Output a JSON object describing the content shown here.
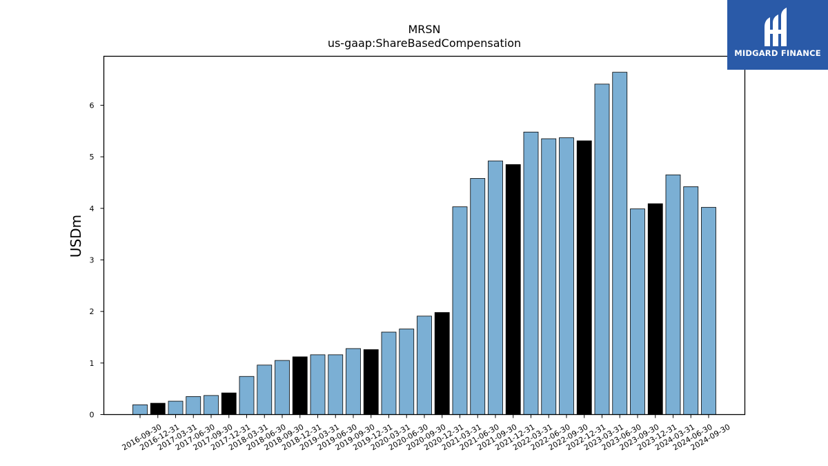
{
  "chart_data": {
    "type": "bar",
    "title": "MRSN",
    "subtitle": "us-gaap:ShareBasedCompensation",
    "xlabel": "",
    "ylabel": "USDm",
    "ylim": [
      0,
      6.95
    ],
    "yticks": [
      0,
      1,
      2,
      3,
      4,
      5,
      6
    ],
    "grid": false,
    "legend": "none",
    "colors": {
      "quarter": "#7bafd4",
      "year_end": "#000000",
      "edge": "#000000"
    },
    "categories": [
      "2016-09-30",
      "2016-12-31",
      "2017-03-31",
      "2017-06-30",
      "2017-09-30",
      "2017-12-31",
      "2018-03-31",
      "2018-06-30",
      "2018-09-30",
      "2018-12-31",
      "2019-03-31",
      "2019-06-30",
      "2019-09-30",
      "2019-12-31",
      "2020-03-31",
      "2020-06-30",
      "2020-09-30",
      "2020-12-31",
      "2021-03-31",
      "2021-06-30",
      "2021-09-30",
      "2021-12-31",
      "2022-03-31",
      "2022-06-30",
      "2022-09-30",
      "2022-12-31",
      "2023-03-31",
      "2023-06-30",
      "2023-09-30",
      "2023-12-31",
      "2024-03-31",
      "2024-06-30",
      "2024-09-30"
    ],
    "values": [
      0.19,
      0.22,
      0.26,
      0.35,
      0.37,
      0.42,
      0.74,
      0.96,
      1.05,
      1.12,
      1.16,
      1.16,
      1.28,
      1.26,
      1.6,
      1.66,
      1.91,
      1.98,
      4.03,
      4.58,
      4.92,
      4.85,
      5.48,
      5.35,
      5.37,
      5.31,
      6.41,
      6.64,
      3.99,
      4.09,
      4.65,
      4.42,
      4.02
    ]
  },
  "logo": {
    "text": "MIDGARD FINANCE"
  }
}
